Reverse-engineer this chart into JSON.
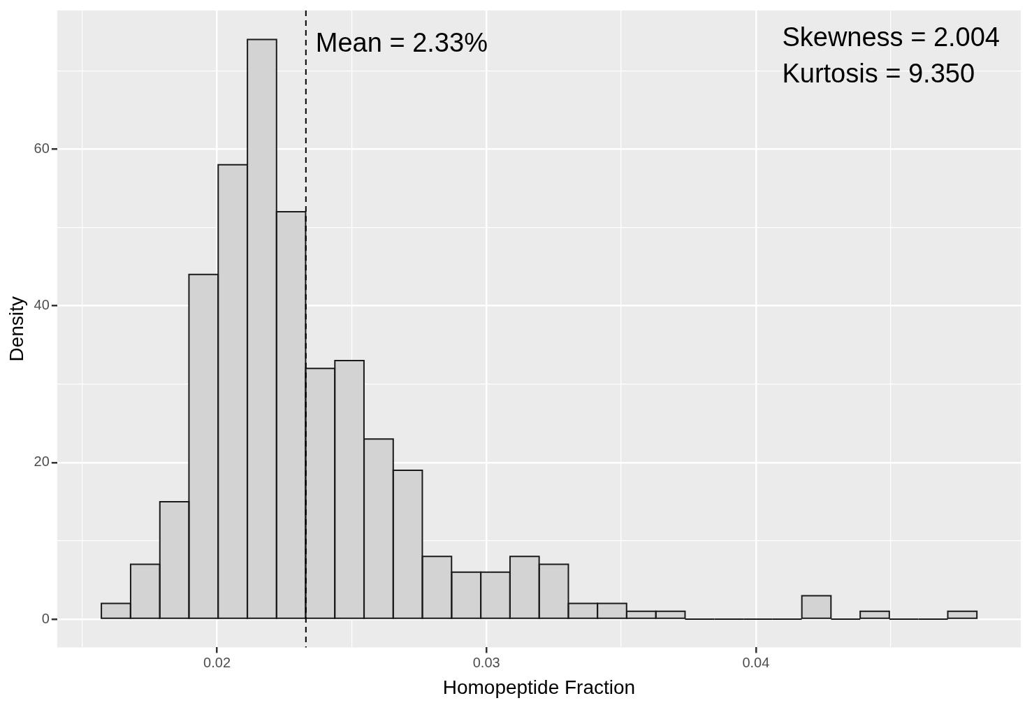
{
  "chart_data": {
    "type": "histogram",
    "xlabel": "Homopeptide Fraction",
    "ylabel": "Density",
    "bins": [
      0.01571,
      0.01679,
      0.01788,
      0.01896,
      0.02004,
      0.02113,
      0.02221,
      0.02329,
      0.02437,
      0.02546,
      0.02654,
      0.02762,
      0.02871,
      0.02979,
      0.03087,
      0.03196,
      0.03304,
      0.03412,
      0.0352,
      0.03629,
      0.03737,
      0.03845,
      0.03954,
      0.04062,
      0.0417,
      0.04279,
      0.04387,
      0.04495,
      0.04604,
      0.04712,
      0.0482
    ],
    "values": [
      2,
      7,
      15,
      44,
      58,
      74,
      52,
      32,
      33,
      23,
      19,
      8,
      6,
      6,
      8,
      7,
      2,
      2,
      1,
      1,
      0,
      0,
      0,
      0,
      3,
      0,
      1,
      0,
      0,
      1
    ],
    "color": "#d3d3d3",
    "xlim": [
      0.01407,
      0.04983
    ],
    "ylim": [
      -3.6,
      77.7
    ],
    "xticks": [
      {
        "value": 0.015,
        "label": null
      },
      0.02,
      {
        "value": 0.025,
        "label": null
      },
      0.03,
      {
        "value": 0.035,
        "label": null
      },
      0.04,
      {
        "value": 0.045,
        "label": null
      }
    ],
    "yticks": [
      0,
      {
        "value": 10,
        "label": null
      },
      20,
      {
        "value": 30,
        "label": null
      },
      40,
      {
        "value": 50,
        "label": null
      },
      60,
      {
        "value": 70,
        "label": null
      }
    ],
    "grid": true,
    "legend": false,
    "ref_lines": [
      {
        "axis": "x",
        "value": 0.0233,
        "label": "Mean = 2.33%",
        "line_style": "dashed",
        "color": "#000000"
      }
    ],
    "annotations": [
      "Skewness = 2.004",
      "Kurtosis = 9.350"
    ]
  }
}
